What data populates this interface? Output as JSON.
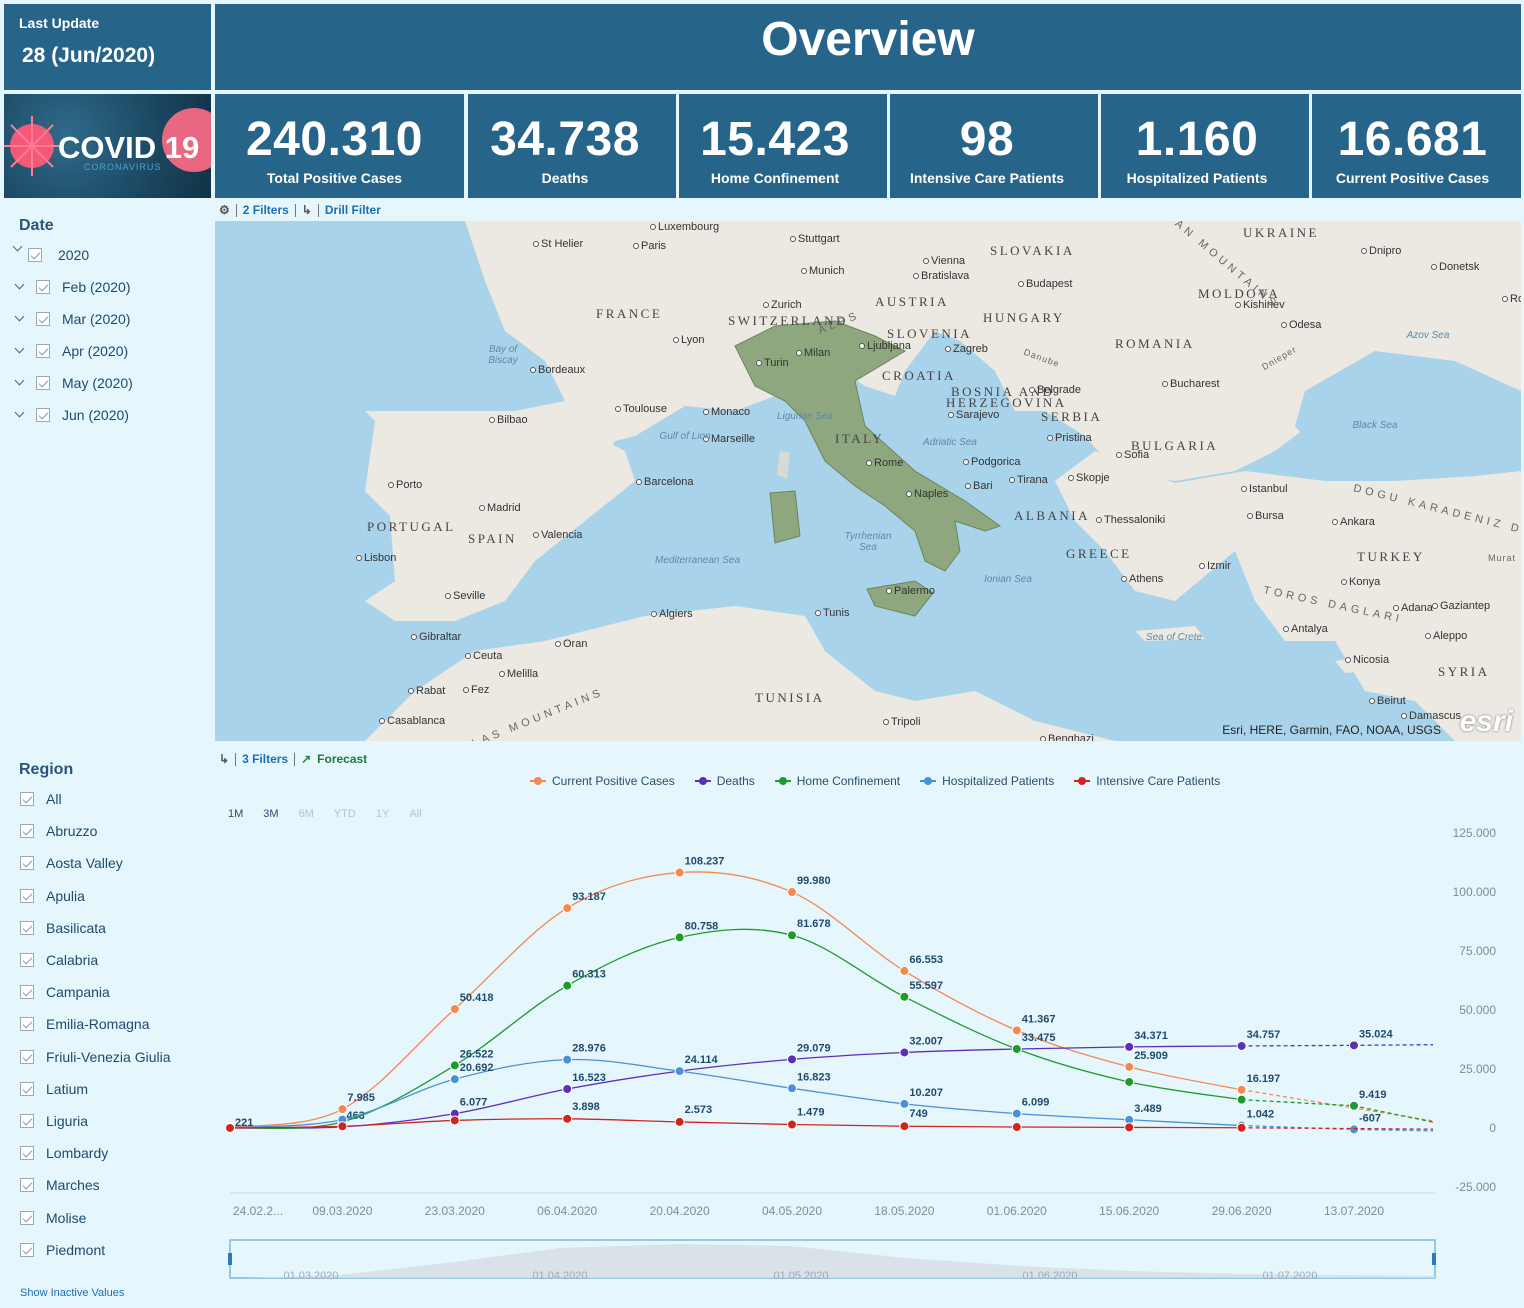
{
  "header": {
    "last_update_label": "Last Update",
    "last_update_value": "28 (Jun/2020)",
    "title": "Overview",
    "logo_text": "COVID 19",
    "logo_subtext": "CORONAVIRUS"
  },
  "kpis": [
    {
      "value": "240.310",
      "label": "Total Positive Cases"
    },
    {
      "value": "34.738",
      "label": "Deaths"
    },
    {
      "value": "15.423",
      "label": "Home Confinement"
    },
    {
      "value": "98",
      "label": "Intensive Care Patients"
    },
    {
      "value": "1.160",
      "label": "Hospitalized Patients"
    },
    {
      "value": "16.681",
      "label": "Current Positive Cases"
    }
  ],
  "date_filter": {
    "title": "Date",
    "items": [
      "2020",
      "Feb (2020)",
      "Mar (2020)",
      "Apr (2020)",
      "May (2020)",
      "Jun (2020)"
    ]
  },
  "region_filter": {
    "title": "Region",
    "items": [
      "All",
      "Abruzzo",
      "Aosta Valley",
      "Apulia",
      "Basilicata",
      "Calabria",
      "Campania",
      "Emilia-Romagna",
      "Friuli-Venezia Giulia",
      "Latium",
      "Liguria",
      "Lombardy",
      "Marches",
      "Molise",
      "Piedmont"
    ],
    "show_inactive": "Show Inactive Values"
  },
  "map_toolbar": {
    "filters": "2 Filters",
    "drill": "Drill Filter"
  },
  "chart_toolbar": {
    "filters": "3 Filters",
    "forecast": "Forecast"
  },
  "map": {
    "attribution": "Esri, HERE, Garmin, FAO, NOAA, USGS",
    "logo": "esri",
    "labels": {
      "countries": [
        "FRANCE",
        "SPAIN",
        "PORTUGAL",
        "ITALY",
        "SWITZERLAND",
        "AUSTRIA",
        "SLOVAKIA",
        "HUNGARY",
        "UKRAINE",
        "MOLDOVA",
        "ROMANIA",
        "SLOVENIA",
        "CROATIA",
        "BOSNIA AND",
        "HERZEGOVINA",
        "SERBIA",
        "BULGARIA",
        "ALBANIA",
        "GREECE",
        "TURKEY",
        "TUNISIA",
        "SYRIA"
      ],
      "cities": [
        "Luxembourg",
        "St Helier",
        "Paris",
        "Stuttgart",
        "Munich",
        "Vienna",
        "Bratislava",
        "Budapest",
        "Dnipro",
        "Donetsk",
        "Kishinev",
        "Odesa",
        "Zurich",
        "Lyon",
        "Bordeaux",
        "Turin",
        "Milan",
        "Ljubljana",
        "Zagreb",
        "Bucharest",
        "Belgrade",
        "Sarajevo",
        "Bilbao",
        "Toulouse",
        "Monaco",
        "Marseille",
        "Porto",
        "Madrid",
        "Barcelona",
        "Valencia",
        "Lisbon",
        "Seville",
        "Gibraltar",
        "Ceuta",
        "Melilla",
        "Oran",
        "Algiers",
        "Tunis",
        "Rabat",
        "Fez",
        "Casablanca",
        "Tripoli",
        "Rome",
        "Naples",
        "Bari",
        "Palermo",
        "Podgorica",
        "Tirana",
        "Skopje",
        "Pristina",
        "Sofia",
        "Thessaloniki",
        "Athens",
        "Istanbul",
        "Bursa",
        "Izmir",
        "Ankara",
        "Konya",
        "Antalya",
        "Adana",
        "Gaziantep",
        "Aleppo",
        "Nicosia",
        "Beirut",
        "Damascus",
        "Rostov-on-Don",
        "Benghazi"
      ],
      "seas": [
        "Bay of Biscay",
        "Gulf of Lion",
        "Ligurian Sea",
        "Adriatic Sea",
        "Tyrrhenian Sea",
        "Mediterranean Sea",
        "Ionian Sea",
        "Sea of Crete",
        "Black Sea",
        "Azov Sea"
      ],
      "terrain": [
        "ALPS",
        "ATLAS MOUNTAINS",
        "CARPATHIAN MOUNTAINS",
        "TOROS DAGLARI",
        "DOGU KARADENIZ DAGLARI",
        "Danube",
        "Dnieper",
        "Murat"
      ]
    }
  },
  "chart_range_buttons": [
    "1M",
    "3M",
    "6M",
    "YTD",
    "1Y",
    "All"
  ],
  "chart_data": {
    "type": "line",
    "x": [
      "24.02.2020",
      "09.03.2020",
      "23.03.2020",
      "06.04.2020",
      "20.04.2020",
      "04.05.2020",
      "18.05.2020",
      "01.06.2020",
      "15.06.2020",
      "29.06.2020",
      "13.07.2020"
    ],
    "x_tick_labels": [
      "24.02.2...",
      "09.03.2020",
      "23.03.2020",
      "06.04.2020",
      "20.04.2020",
      "04.05.2020",
      "18.05.2020",
      "01.06.2020",
      "15.06.2020",
      "29.06.2020",
      "13.07.2020"
    ],
    "y_ticks": [
      "125.000",
      "100.000",
      "75.000",
      "50.000",
      "25.000",
      "0",
      "-25.000"
    ],
    "ylim": [
      -25000,
      125000
    ],
    "series": [
      {
        "name": "Current Positive Cases",
        "color": "#f5884f",
        "values": [
          221,
          7985,
          50418,
          93187,
          108237,
          99980,
          66553,
          41367,
          25909,
          16197,
          null
        ],
        "labels": [
          "221",
          "7.985",
          "50.418",
          "93.187",
          "108.237",
          "99.980",
          "66.553",
          "41.367",
          "25.909",
          "16.197",
          ""
        ],
        "forecast_end": 3000
      },
      {
        "name": "Deaths",
        "color": "#5d2fb8",
        "values": [
          7,
          463,
          6077,
          16523,
          24114,
          29079,
          32007,
          33475,
          34371,
          34757,
          35024
        ],
        "labels": [
          "",
          "463",
          "6.077",
          "16.523",
          "24.114",
          "29.079",
          "32.007",
          "33.475",
          "34.371",
          "34.757",
          "35.024"
        ],
        "forecast_end": 35300
      },
      {
        "name": "Home Confinement",
        "color": "#1e9b2c",
        "values": [
          94,
          2599,
          26522,
          60313,
          80758,
          81678,
          55597,
          33475,
          19500,
          12000,
          9419
        ],
        "labels": [
          "",
          "",
          "26.522",
          "60.313",
          "80.758",
          "81.678",
          "55.597",
          "",
          "",
          "",
          "9.419"
        ],
        "forecast_end": 2500
      },
      {
        "name": "Hospitalized Patients",
        "color": "#4a90d9",
        "values": [
          99,
          3557,
          20692,
          28976,
          24114,
          16823,
          10207,
          6099,
          3489,
          1042,
          -607
        ],
        "labels": [
          "",
          "",
          "20.692",
          "28.976",
          "",
          "16.823",
          "10.207",
          "6.099",
          "3.489",
          "1.042",
          "-607"
        ],
        "forecast_end": -1200
      },
      {
        "name": "Intensive Care Patients",
        "color": "#d0251f",
        "values": [
          26,
          733,
          3204,
          3898,
          2573,
          1479,
          749,
          408,
          263,
          98,
          null
        ],
        "labels": [
          "",
          "",
          "",
          "3.898",
          "2.573",
          "1.479",
          "749",
          "",
          "",
          "",
          ""
        ],
        "forecast_end": -500
      }
    ],
    "navigator_labels": [
      "01.03.2020",
      "01.04.2020",
      "01.05.2020",
      "01.06.2020",
      "01.07.2020"
    ],
    "legend": "top"
  }
}
